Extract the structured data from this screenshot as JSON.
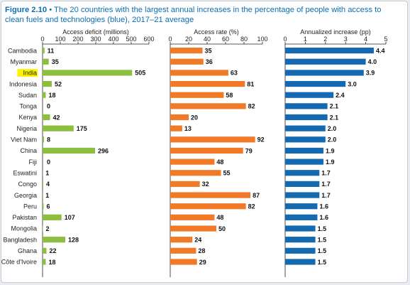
{
  "title": {
    "figure_number": "Figure 2.10",
    "separator": "•",
    "text": "The 20 countries with the largest annual increases in the percentage of people with access to clean fuels and technologies (blue), 2017–21 average"
  },
  "colors": {
    "title": "#0b6fb5",
    "deficit_bars": "#8cbe3f",
    "rate_bars": "#f07a28",
    "increase_bars": "#1469b0",
    "highlight": "#fff200",
    "axis": "#222222"
  },
  "chart_data": {
    "type": "bar",
    "orientation": "horizontal",
    "categories": [
      "Cambodia",
      "Myanmar",
      "India",
      "Indonesia",
      "Sudan",
      "Tonga",
      "Kenya",
      "Nigeria",
      "Viet Nam",
      "China",
      "Fiji",
      "Eswatini",
      "Congo",
      "Georgia",
      "Peru",
      "Pakistan",
      "Mongolia",
      "Bangladesh",
      "Ghana",
      "Côte d'Ivoire"
    ],
    "highlighted_category": "India",
    "panels": [
      {
        "name": "deficit",
        "xlabel": "Access deficit (millions)",
        "xlim": [
          0,
          600
        ],
        "ticks": [
          "0",
          "100",
          "200",
          "300",
          "400",
          "500",
          "600"
        ],
        "values": [
          11,
          35,
          505,
          52,
          18,
          0,
          42,
          175,
          8,
          296,
          0,
          1,
          4,
          1,
          6,
          107,
          2,
          128,
          22,
          18
        ],
        "labels": [
          "11",
          "35",
          "505",
          "52",
          "18",
          "0",
          "42",
          "175",
          "8",
          "296",
          "0",
          "1",
          "4",
          "1",
          "6",
          "107",
          "2",
          "128",
          "22",
          "18"
        ],
        "color": "#8cbe3f"
      },
      {
        "name": "rate",
        "xlabel": "Access rate (%)",
        "xlim": [
          0,
          100
        ],
        "ticks": [
          "0",
          "20",
          "40",
          "60",
          "80",
          "100"
        ],
        "values": [
          35,
          36,
          63,
          81,
          58,
          82,
          20,
          13,
          92,
          79,
          48,
          55,
          32,
          87,
          82,
          48,
          50,
          24,
          28,
          29
        ],
        "labels": [
          "35",
          "36",
          "63",
          "81",
          "58",
          "82",
          "20",
          "13",
          "92",
          "79",
          "48",
          "55",
          "32",
          "87",
          "82",
          "48",
          "50",
          "24",
          "28",
          "29"
        ],
        "color": "#f07a28"
      },
      {
        "name": "increase",
        "xlabel": "Annualized increase (pp)",
        "xlim": [
          0,
          5
        ],
        "ticks": [
          "0",
          "1",
          "2",
          "3",
          "4",
          "5"
        ],
        "values": [
          4.4,
          4.0,
          3.9,
          3.0,
          2.4,
          2.1,
          2.1,
          2.0,
          2.0,
          1.9,
          1.9,
          1.7,
          1.7,
          1.7,
          1.6,
          1.6,
          1.5,
          1.5,
          1.5,
          1.5
        ],
        "labels": [
          "4.4",
          "4.0",
          "3.9",
          "3.0",
          "2.4",
          "2.1",
          "2.1",
          "2.0",
          "2.0",
          "1.9",
          "1.9",
          "1.7",
          "1.7",
          "1.7",
          "1.6",
          "1.6",
          "1.5",
          "1.5",
          "1.5",
          "1.5"
        ],
        "color": "#1469b0"
      }
    ]
  }
}
